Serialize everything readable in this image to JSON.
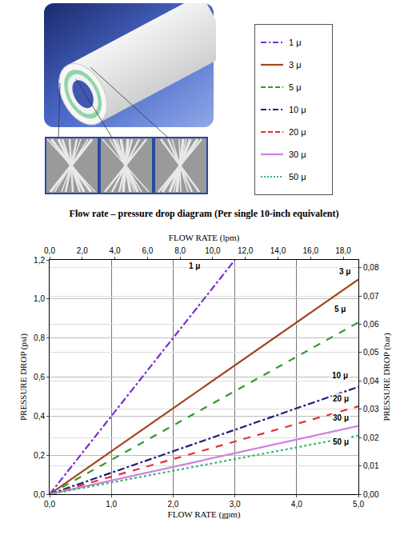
{
  "chart_data": {
    "type": "line",
    "title": "Flow rate – pressure drop diagram (Per single 10-inch equivalent)",
    "xlabel": "FLOW RATE (gpm)",
    "x2label": "FLOW RATE (lpm)",
    "ylabel": "PRESSURE DROP (psi)",
    "y2label": "PRESSURE DROP (bar)",
    "xlim": [
      0,
      5
    ],
    "xticks": [
      {
        "value": 0,
        "label": "0,0"
      },
      {
        "value": 1,
        "label": "1,0"
      },
      {
        "value": 2,
        "label": "2,0"
      },
      {
        "value": 3,
        "label": "3,0"
      },
      {
        "value": 4,
        "label": "4,0"
      },
      {
        "value": 5,
        "label": "5,0"
      }
    ],
    "x2lim": [
      0,
      18.93
    ],
    "x2ticks": [
      {
        "value": 0,
        "label": "0,0"
      },
      {
        "value": 2,
        "label": "2,0"
      },
      {
        "value": 4,
        "label": "4,0"
      },
      {
        "value": 6,
        "label": "6,0"
      },
      {
        "value": 8,
        "label": "8,0"
      },
      {
        "value": 10,
        "label": "10,0"
      },
      {
        "value": 12,
        "label": "12,0"
      },
      {
        "value": 14,
        "label": "14,0"
      },
      {
        "value": 16,
        "label": "16,0"
      },
      {
        "value": 18,
        "label": "18,0"
      }
    ],
    "ylim": [
      0,
      1.2
    ],
    "yticks": [
      {
        "value": 0,
        "label": "0,0"
      },
      {
        "value": 0.2,
        "label": "0,2"
      },
      {
        "value": 0.4,
        "label": "0,4"
      },
      {
        "value": 0.6,
        "label": "0,6"
      },
      {
        "value": 0.8,
        "label": "0,8"
      },
      {
        "value": 1.0,
        "label": "1,0"
      },
      {
        "value": 1.2,
        "label": "1,2"
      }
    ],
    "y2lim": [
      0,
      0.0827
    ],
    "y2ticks": [
      {
        "value": 0,
        "label": "0,00"
      },
      {
        "value": 0.01,
        "label": "0,01"
      },
      {
        "value": 0.02,
        "label": "0,02"
      },
      {
        "value": 0.03,
        "label": "0,03"
      },
      {
        "value": 0.04,
        "label": "0,04"
      },
      {
        "value": 0.05,
        "label": "0,05"
      },
      {
        "value": 0.06,
        "label": "0,06"
      },
      {
        "value": 0.07,
        "label": "0,07"
      },
      {
        "value": 0.08,
        "label": "0,08"
      }
    ],
    "grid": true,
    "series": [
      {
        "name": "1 μ",
        "color": "#7b2fd0",
        "line_style": "dashdot",
        "x": [
          0,
          3
        ],
        "values": [
          0,
          1.2
        ]
      },
      {
        "name": "3 μ",
        "color": "#a0461e",
        "line_style": "solid",
        "x": [
          0,
          5
        ],
        "values": [
          0,
          1.1
        ]
      },
      {
        "name": "5 μ",
        "color": "#2e9a2e",
        "line_style": "dash",
        "x": [
          0,
          5
        ],
        "values": [
          0,
          0.88
        ]
      },
      {
        "name": "10 μ",
        "color": "#1f1f7a",
        "line_style": "dashdot",
        "x": [
          0,
          5
        ],
        "values": [
          0,
          0.55
        ]
      },
      {
        "name": "20 μ",
        "color": "#e03030",
        "line_style": "dash",
        "x": [
          0,
          5
        ],
        "values": [
          0,
          0.45
        ]
      },
      {
        "name": "30 μ",
        "color": "#d080e0",
        "line_style": "solid",
        "x": [
          0,
          5
        ],
        "values": [
          0,
          0.35
        ]
      },
      {
        "name": "50 μ",
        "color": "#3cb371",
        "line_style": "dot",
        "x": [
          0,
          5
        ],
        "values": [
          0,
          0.3
        ]
      }
    ],
    "annotations": [
      {
        "text": "1 μ",
        "x": 2.35,
        "y": 1.17
      },
      {
        "text": "3 μ",
        "x": 4.78,
        "y": 1.14
      },
      {
        "text": "5 μ",
        "x": 4.7,
        "y": 0.95
      },
      {
        "text": "10 μ",
        "x": 4.7,
        "y": 0.61
      },
      {
        "text": "20 μ",
        "x": 4.72,
        "y": 0.49
      },
      {
        "text": "30 μ",
        "x": 4.72,
        "y": 0.39
      },
      {
        "text": "50 μ",
        "x": 4.72,
        "y": 0.27
      }
    ]
  }
}
